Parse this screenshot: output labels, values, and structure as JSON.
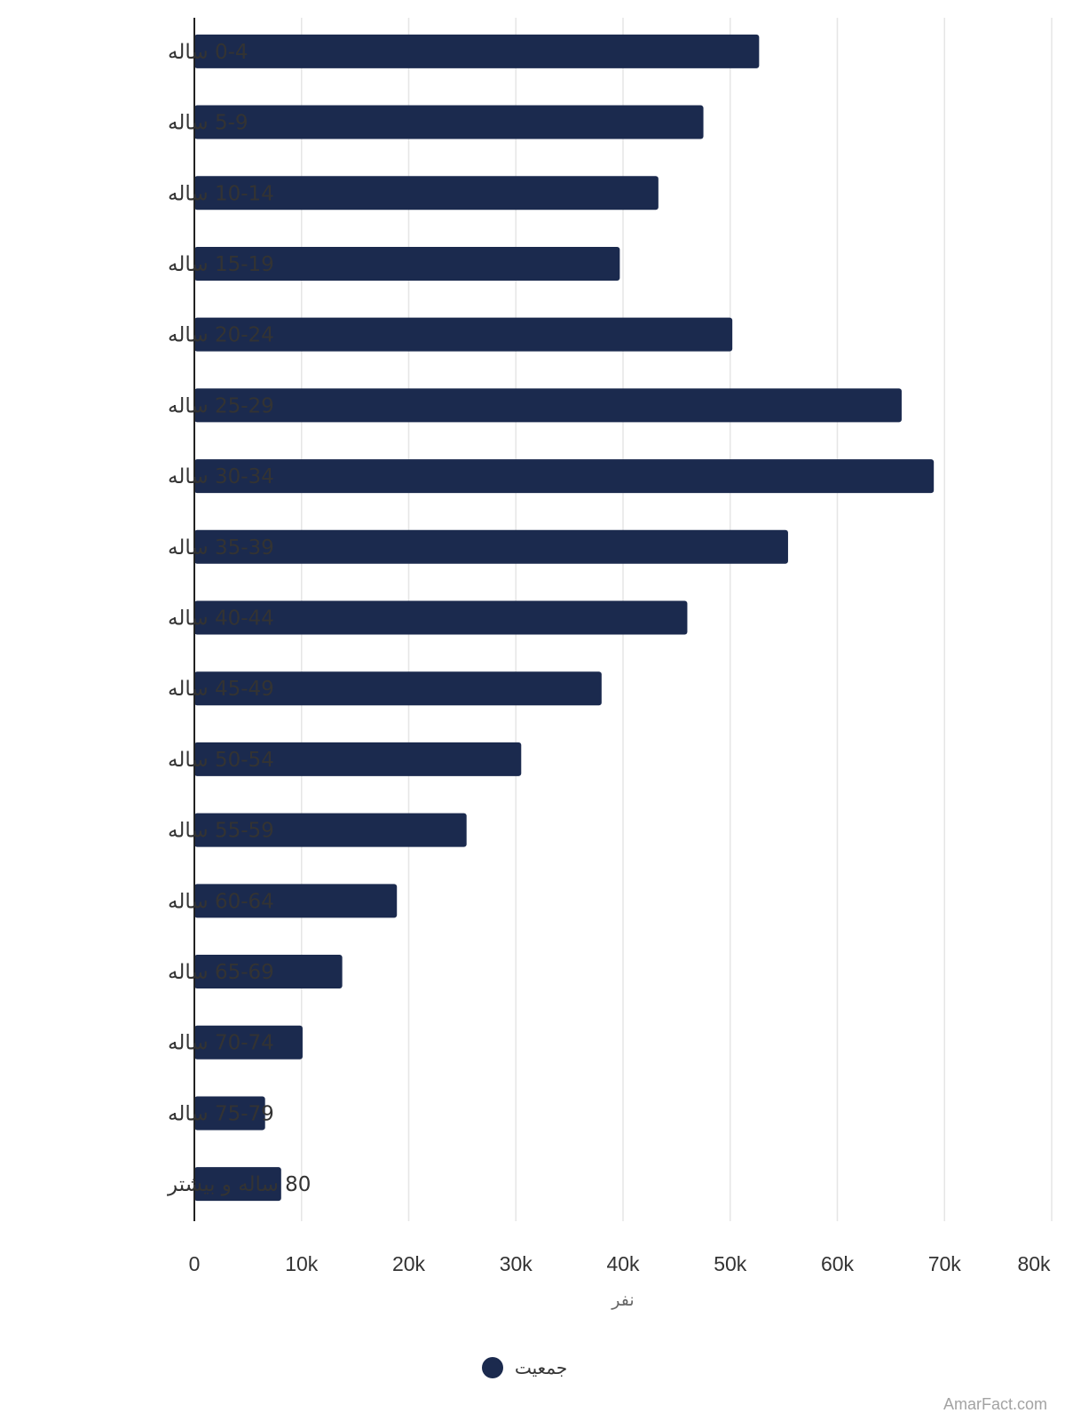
{
  "chart_data": {
    "type": "bar",
    "orientation": "horizontal",
    "categories": [
      "0-4 ساله",
      "5-9 ساله",
      "10-14 ساله",
      "15-19 ساله",
      "20-24 ساله",
      "25-29 ساله",
      "30-34 ساله",
      "35-39 ساله",
      "40-44 ساله",
      "45-49 ساله",
      "50-54 ساله",
      "55-59 ساله",
      "60-64 ساله",
      "65-69 ساله",
      "70-74 ساله",
      "75-79 ساله",
      "80 ساله و بیشتر"
    ],
    "series": [
      {
        "name": "جمعیت",
        "color": "#1b2a4e",
        "values": [
          52700,
          47500,
          43300,
          39700,
          50200,
          66000,
          69000,
          55400,
          46000,
          38000,
          30500,
          25400,
          18900,
          13800,
          10100,
          6600,
          8100
        ]
      }
    ],
    "xlabel": "نفر",
    "ylabel": "",
    "xlim": [
      0,
      80000
    ],
    "ticks": [
      "0",
      "10k",
      "20k",
      "30k",
      "40k",
      "50k",
      "60k",
      "70k",
      "80k"
    ],
    "grid": true,
    "legend_position": "bottom"
  },
  "credit": "AmarFact.com"
}
